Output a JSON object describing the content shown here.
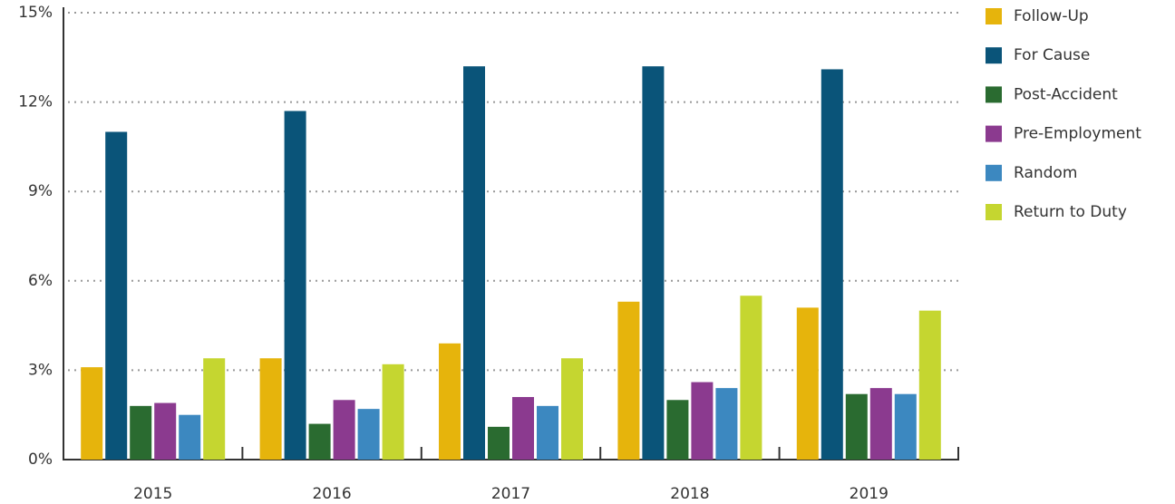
{
  "chart_data": {
    "type": "bar",
    "categories": [
      "2015",
      "2016",
      "2017",
      "2018",
      "2019"
    ],
    "series": [
      {
        "name": "Follow-Up",
        "color": "#e6b40c",
        "values": [
          3.1,
          3.4,
          3.9,
          5.3,
          5.1
        ]
      },
      {
        "name": "For Cause",
        "color": "#0a5479",
        "values": [
          11.0,
          11.7,
          13.2,
          13.2,
          13.1
        ]
      },
      {
        "name": "Post-Accident",
        "color": "#2a6b30",
        "values": [
          1.8,
          1.2,
          1.1,
          2.0,
          2.2
        ]
      },
      {
        "name": "Pre-Employment",
        "color": "#8b3a8f",
        "values": [
          1.9,
          2.0,
          2.1,
          2.6,
          2.4
        ]
      },
      {
        "name": "Random",
        "color": "#3c88c0",
        "values": [
          1.5,
          1.7,
          1.8,
          2.4,
          2.2
        ]
      },
      {
        "name": "Return to Duty",
        "color": "#c5d630",
        "values": [
          3.4,
          3.2,
          3.4,
          5.5,
          5.0
        ]
      }
    ],
    "ylim": [
      0,
      15
    ],
    "yticks": [
      {
        "value": 0,
        "label": "0%"
      },
      {
        "value": 3,
        "label": "3%"
      },
      {
        "value": 6,
        "label": "6%"
      },
      {
        "value": 9,
        "label": "9%"
      },
      {
        "value": 12,
        "label": "12%"
      },
      {
        "value": 15,
        "label": "15%"
      }
    ],
    "grid": true,
    "legend": "right"
  }
}
